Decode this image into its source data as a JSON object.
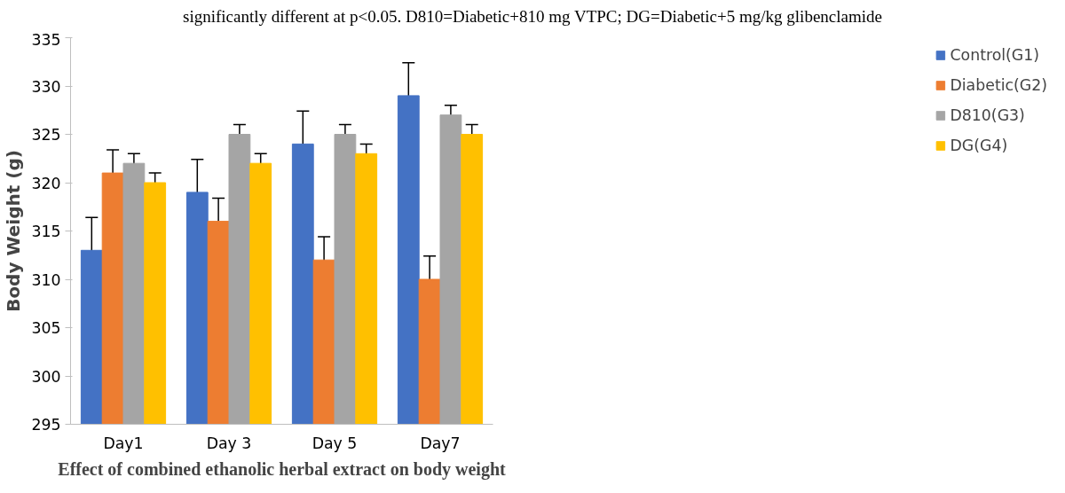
{
  "chart_data": {
    "type": "bar",
    "annotations": [
      "significantly different at p<0.05. D810=Diabetic+810 mg VTPC; DG=Diabetic+5 mg/kg glibenclamide"
    ],
    "xlabel": "Effect of combined ethanolic herbal extract on body weight",
    "ylabel": "Body Weight (g)",
    "categories": [
      "Day1",
      "Day 3",
      "Day 5",
      "Day7"
    ],
    "series": [
      {
        "name": "Control(G1)",
        "color": "#4472c4",
        "values": [
          313,
          319,
          324,
          329
        ],
        "errors": [
          3.4,
          3.4,
          3.4,
          3.4
        ]
      },
      {
        "name": "Diabetic(G2)",
        "color": "#ed7d31",
        "values": [
          321,
          316,
          312,
          310
        ],
        "errors": [
          2.4,
          2.4,
          2.4,
          2.4
        ]
      },
      {
        "name": "D810(G3)",
        "color": "#a5a5a5",
        "values": [
          322,
          325,
          325,
          327
        ],
        "errors": [
          1,
          1,
          1,
          1
        ]
      },
      {
        "name": "DG(G4)",
        "color": "#ffc000",
        "values": [
          320,
          322,
          323,
          325
        ],
        "errors": [
          1,
          1,
          1,
          1
        ]
      }
    ],
    "ylim": [
      295,
      335
    ],
    "yticks": [
      295,
      300,
      305,
      310,
      315,
      320,
      325,
      330,
      335
    ],
    "grid": false,
    "legend": "right"
  }
}
